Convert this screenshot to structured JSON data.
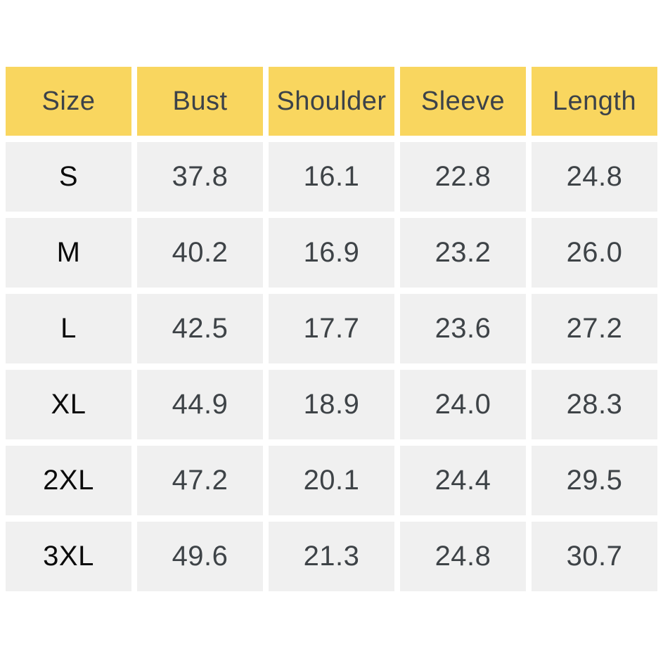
{
  "chart_data": {
    "type": "table",
    "columns": [
      "Size",
      "Bust",
      "Shoulder",
      "Sleeve",
      "Length"
    ],
    "rows": [
      [
        "S",
        "37.8",
        "16.1",
        "22.8",
        "24.8"
      ],
      [
        "M",
        "40.2",
        "16.9",
        "23.2",
        "26.0"
      ],
      [
        "L",
        "42.5",
        "17.7",
        "23.6",
        "27.2"
      ],
      [
        "XL",
        "44.9",
        "18.9",
        "24.0",
        "28.3"
      ],
      [
        "2XL",
        "47.2",
        "20.1",
        "24.4",
        "29.5"
      ],
      [
        "3XL",
        "49.6",
        "21.3",
        "24.8",
        "30.7"
      ]
    ],
    "layout": {
      "legend": "none",
      "grid": "off",
      "header_position": "top"
    },
    "colors": {
      "header_bg": "#F9D65F",
      "row_bg": "#F0F0F0",
      "gutter_bg": "#FFFFFF",
      "header_text": "#3C4249",
      "value_text": "#3E4347",
      "size_label_text": "#0B0B0B"
    }
  }
}
